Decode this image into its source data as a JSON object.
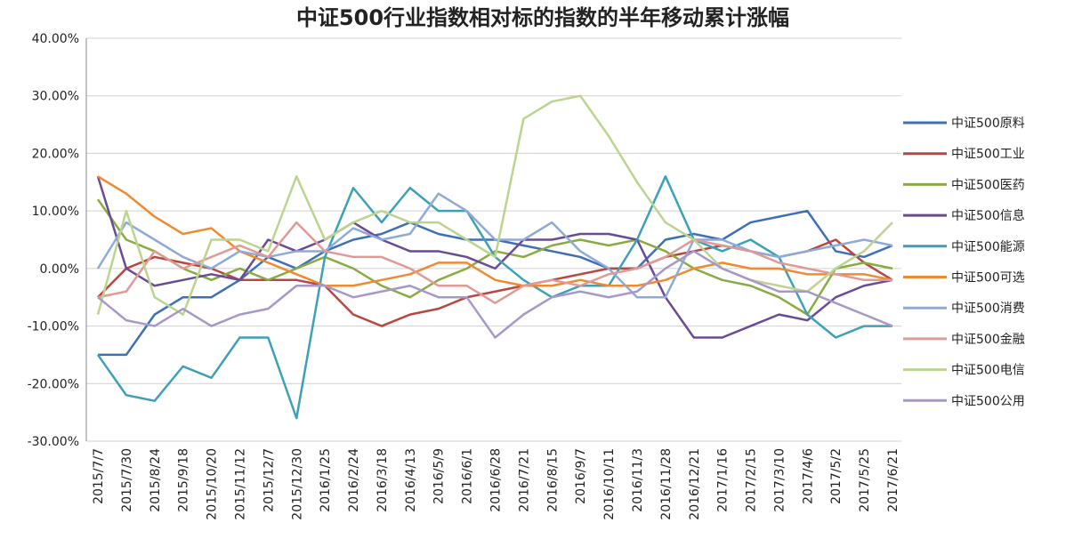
{
  "chart_data": {
    "type": "line",
    "title": "中证500行业指数相对标的指数的半年移动累计涨幅",
    "categories": [
      "2015/7/7",
      "2015/7/30",
      "2015/8/24",
      "2015/9/18",
      "2015/10/20",
      "2015/11/12",
      "2015/12/7",
      "2015/12/30",
      "2016/1/25",
      "2016/2/24",
      "2016/3/18",
      "2016/4/13",
      "2016/5/9",
      "2016/6/1",
      "2016/6/28",
      "2016/7/21",
      "2016/8/15",
      "2016/9/7",
      "2016/10/11",
      "2016/11/3",
      "2016/11/28",
      "2016/12/21",
      "2017/1/16",
      "2017/2/15",
      "2017/3/10",
      "2017/4/6",
      "2017/5/2",
      "2017/5/25",
      "2017/6/21"
    ],
    "ylim": [
      -30,
      40
    ],
    "yticks": [
      {
        "value": -30,
        "label": "-30.00%"
      },
      {
        "value": -20,
        "label": "-20.00%"
      },
      {
        "value": -10,
        "label": "-10.00%"
      },
      {
        "value": 0,
        "label": "0.00%"
      },
      {
        "value": 10,
        "label": "10.00%"
      },
      {
        "value": 20,
        "label": "20.00%"
      },
      {
        "value": 30,
        "label": "30.00%"
      },
      {
        "value": 40,
        "label": "40.00%"
      }
    ],
    "legend": "right",
    "series": [
      {
        "name": "中证500原料",
        "color": "#3f6fb5",
        "values": [
          -15,
          -15,
          -8,
          -5,
          -5,
          -2,
          2,
          0,
          3,
          5,
          6,
          8,
          6,
          5,
          5,
          4,
          3,
          2,
          0,
          0,
          5,
          6,
          5,
          8,
          9,
          10,
          3,
          2,
          4
        ]
      },
      {
        "name": "中证500工业",
        "color": "#b8473f",
        "values": [
          -5,
          0,
          2,
          1,
          0,
          -2,
          -2,
          -2,
          -3,
          -8,
          -10,
          -8,
          -7,
          -5,
          -4,
          -3,
          -2,
          -1,
          0,
          0,
          2,
          3,
          4,
          3,
          2,
          3,
          5,
          1,
          -2
        ]
      },
      {
        "name": "中证500医药",
        "color": "#8aab44",
        "values": [
          12,
          5,
          3,
          0,
          -2,
          0,
          -2,
          0,
          2,
          0,
          -3,
          -5,
          -2,
          0,
          3,
          2,
          4,
          5,
          4,
          5,
          3,
          0,
          -2,
          -3,
          -5,
          -8,
          0,
          1,
          0
        ]
      },
      {
        "name": "中证500信息",
        "color": "#6a4b96",
        "values": [
          16,
          0,
          -3,
          -2,
          -1,
          -2,
          5,
          3,
          5,
          8,
          5,
          3,
          3,
          2,
          0,
          5,
          5,
          6,
          6,
          5,
          -5,
          -12,
          -12,
          -10,
          -8,
          -9,
          -5,
          -3,
          -2
        ]
      },
      {
        "name": "中证500能源",
        "color": "#3ea0b8",
        "values": [
          -15,
          -22,
          -23,
          -17,
          -19,
          -12,
          -12,
          -26,
          2,
          14,
          8,
          14,
          10,
          10,
          2,
          -2,
          -5,
          -3,
          -3,
          5,
          16,
          5,
          3,
          5,
          2,
          -8,
          -12,
          -10,
          -10
        ]
      },
      {
        "name": "中证500可选",
        "color": "#f08a30",
        "values": [
          16,
          13,
          9,
          6,
          7,
          3,
          1,
          -1,
          -3,
          -3,
          -2,
          -1,
          1,
          1,
          -2,
          -3,
          -3,
          -2,
          -3,
          -3,
          -2,
          0,
          1,
          0,
          0,
          -1,
          -1,
          -1,
          -2
        ]
      },
      {
        "name": "中证500消费",
        "color": "#8eaad8",
        "values": [
          0,
          8,
          5,
          2,
          0,
          3,
          2,
          3,
          3,
          7,
          5,
          6,
          13,
          10,
          5,
          5,
          8,
          3,
          0,
          -5,
          -5,
          5,
          5,
          3,
          2,
          3,
          4,
          5,
          4
        ]
      },
      {
        "name": "中证500金融",
        "color": "#e09a96",
        "values": [
          -5,
          -4,
          3,
          0,
          2,
          4,
          2,
          8,
          3,
          2,
          2,
          0,
          -3,
          -3,
          -6,
          -3,
          -2,
          -3,
          -1,
          0,
          2,
          5,
          4,
          3,
          1,
          0,
          -1,
          -2,
          -2
        ]
      },
      {
        "name": "中证500电信",
        "color": "#bcd48f",
        "values": [
          -8,
          10,
          -5,
          -8,
          5,
          5,
          3,
          16,
          5,
          8,
          10,
          8,
          8,
          5,
          2,
          26,
          29,
          30,
          23,
          15,
          8,
          5,
          0,
          -2,
          -3,
          -4,
          0,
          3,
          8
        ]
      },
      {
        "name": "中证500公用",
        "color": "#a898c8",
        "values": [
          -5,
          -9,
          -10,
          -7,
          -10,
          -8,
          -7,
          -3,
          -3,
          -5,
          -4,
          -3,
          -5,
          -5,
          -12,
          -8,
          -5,
          -4,
          -5,
          -4,
          0,
          3,
          0,
          -2,
          -4,
          -4,
          -6,
          -8,
          -10
        ]
      }
    ]
  }
}
